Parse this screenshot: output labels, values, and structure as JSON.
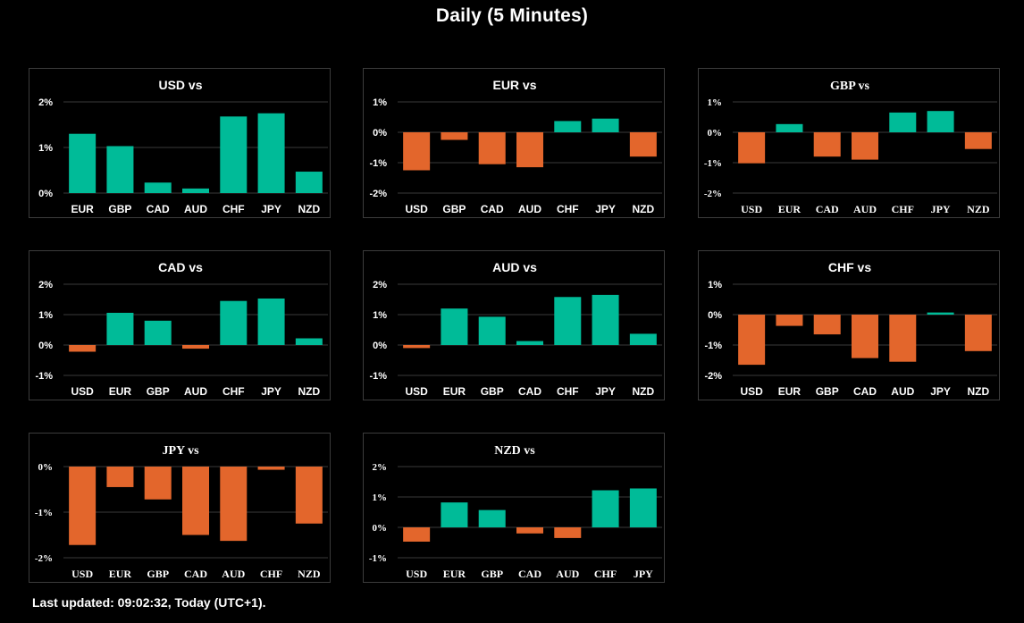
{
  "page": {
    "title": "Daily (5 Minutes)",
    "footer": "Last updated: 09:02:32, Today (UTC+1)."
  },
  "colors": {
    "positive": "#00bb98",
    "negative": "#e3662c",
    "grid": "#3a3a3a",
    "text": "#ffffff",
    "background": "#000000"
  },
  "chart_data": [
    {
      "type": "bar",
      "title": "USD vs",
      "categories": [
        "EUR",
        "GBP",
        "CAD",
        "AUD",
        "CHF",
        "JPY",
        "NZD"
      ],
      "values": [
        1.3,
        1.03,
        0.23,
        0.1,
        1.68,
        1.75,
        0.47
      ],
      "yticks": [
        0,
        1,
        2
      ],
      "ytick_labels": [
        "0%",
        "1%",
        "2%"
      ],
      "ylim": [
        0,
        2
      ],
      "unit": "%",
      "grid": true
    },
    {
      "type": "bar",
      "title": "EUR vs",
      "categories": [
        "USD",
        "GBP",
        "CAD",
        "AUD",
        "CHF",
        "JPY",
        "NZD"
      ],
      "values": [
        -1.25,
        -0.25,
        -1.05,
        -1.15,
        0.37,
        0.45,
        -0.8
      ],
      "yticks": [
        -2,
        -1,
        0,
        1
      ],
      "ytick_labels": [
        "-2%",
        "-1%",
        "0%",
        "1%"
      ],
      "ylim": [
        -2,
        1
      ],
      "unit": "%",
      "grid": true
    },
    {
      "type": "bar",
      "title": "GBP vs",
      "categories": [
        "USD",
        "EUR",
        "CAD",
        "AUD",
        "CHF",
        "JPY",
        "NZD"
      ],
      "values": [
        -1.02,
        0.27,
        -0.8,
        -0.9,
        0.65,
        0.7,
        -0.55
      ],
      "yticks": [
        -2,
        -1,
        0,
        1
      ],
      "ytick_labels": [
        "-2%",
        "-1%",
        "0%",
        "1%"
      ],
      "ylim": [
        -2,
        1
      ],
      "unit": "%",
      "grid": true
    },
    {
      "type": "bar",
      "title": "CAD vs",
      "categories": [
        "USD",
        "EUR",
        "GBP",
        "AUD",
        "CHF",
        "JPY",
        "NZD"
      ],
      "values": [
        -0.22,
        1.06,
        0.8,
        -0.12,
        1.45,
        1.53,
        0.22
      ],
      "yticks": [
        -1,
        0,
        1,
        2
      ],
      "ytick_labels": [
        "-1%",
        "0%",
        "1%",
        "2%"
      ],
      "ylim": [
        -1,
        2
      ],
      "unit": "%",
      "grid": true
    },
    {
      "type": "bar",
      "title": "AUD vs",
      "categories": [
        "USD",
        "EUR",
        "GBP",
        "CAD",
        "CHF",
        "JPY",
        "NZD"
      ],
      "values": [
        -0.1,
        1.2,
        0.93,
        0.13,
        1.58,
        1.65,
        0.37
      ],
      "yticks": [
        -1,
        0,
        1,
        2
      ],
      "ytick_labels": [
        "-1%",
        "0%",
        "1%",
        "2%"
      ],
      "ylim": [
        -1,
        2
      ],
      "unit": "%",
      "grid": true
    },
    {
      "type": "bar",
      "title": "CHF vs",
      "categories": [
        "USD",
        "EUR",
        "GBP",
        "CAD",
        "AUD",
        "JPY",
        "NZD"
      ],
      "values": [
        -1.65,
        -0.37,
        -0.65,
        -1.43,
        -1.55,
        0.07,
        -1.2
      ],
      "yticks": [
        -2,
        -1,
        0,
        1
      ],
      "ytick_labels": [
        "-2%",
        "-1%",
        "0%",
        "1%"
      ],
      "ylim": [
        -2,
        1
      ],
      "unit": "%",
      "grid": true
    },
    {
      "type": "bar",
      "title": "JPY vs",
      "categories": [
        "USD",
        "EUR",
        "GBP",
        "CAD",
        "AUD",
        "CHF",
        "NZD"
      ],
      "values": [
        -1.72,
        -0.45,
        -0.72,
        -1.5,
        -1.63,
        -0.07,
        -1.25
      ],
      "yticks": [
        -2,
        -1,
        0
      ],
      "ytick_labels": [
        "-2%",
        "-1%",
        "0%"
      ],
      "ylim": [
        -2,
        0
      ],
      "unit": "%",
      "grid": true
    },
    {
      "type": "bar",
      "title": "NZD vs",
      "categories": [
        "USD",
        "EUR",
        "GBP",
        "CAD",
        "AUD",
        "CHF",
        "JPY"
      ],
      "values": [
        -0.47,
        0.82,
        0.57,
        -0.2,
        -0.35,
        1.22,
        1.28
      ],
      "yticks": [
        -1,
        0,
        1,
        2
      ],
      "ytick_labels": [
        "-1%",
        "0%",
        "1%",
        "2%"
      ],
      "ylim": [
        -1,
        2
      ],
      "unit": "%",
      "grid": true
    }
  ]
}
